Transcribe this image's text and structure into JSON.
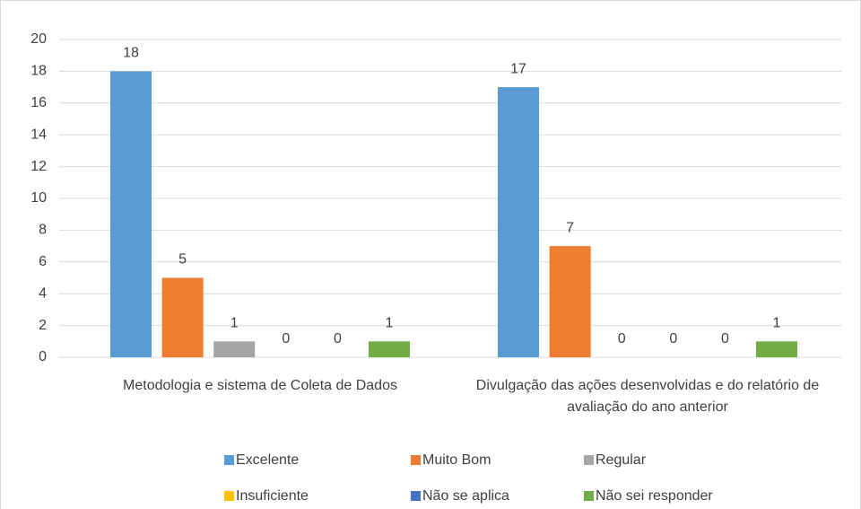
{
  "chart_data": {
    "type": "bar",
    "categories": [
      "Metodologia e sistema de Coleta de Dados",
      "Divulgação das ações desenvolvidas e do relatório de avaliação do ano anterior"
    ],
    "series": [
      {
        "name": "Excelente",
        "color": "#5b9bd5",
        "values": [
          18,
          17
        ]
      },
      {
        "name": "Muito Bom",
        "color": "#ed7d31",
        "values": [
          5,
          7
        ]
      },
      {
        "name": "Regular",
        "color": "#a5a5a5",
        "values": [
          1,
          0
        ]
      },
      {
        "name": "Insuficiente",
        "color": "#ffc000",
        "values": [
          0,
          0
        ]
      },
      {
        "name": "Não se aplica",
        "color": "#4472c4",
        "values": [
          0,
          0
        ]
      },
      {
        "name": "Não sei responder",
        "color": "#70ad47",
        "values": [
          1,
          1
        ]
      }
    ],
    "ylim": [
      0,
      20
    ],
    "yticks": [
      0,
      2,
      4,
      6,
      8,
      10,
      12,
      14,
      16,
      18,
      20
    ],
    "grid": true,
    "legend": "bottom"
  }
}
